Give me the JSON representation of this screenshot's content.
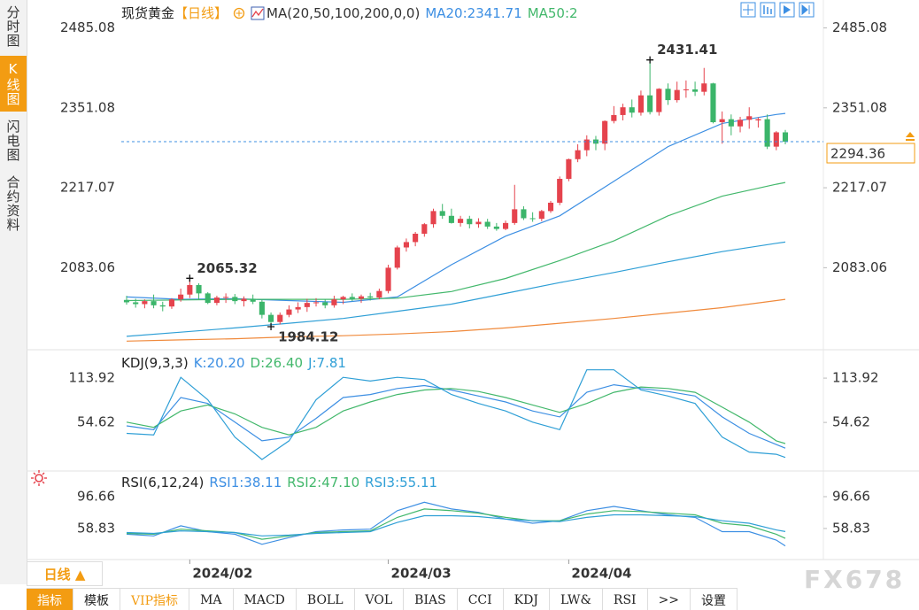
{
  "sidebar": {
    "tabs": [
      "分时图",
      "K线图",
      "闪电图",
      "合约资料"
    ],
    "active": 1
  },
  "period_button": "日线 ▲",
  "toolbar": {
    "tabs": [
      "指标",
      "模板",
      "VIP指标",
      "MA",
      "MACD",
      "BOLL",
      "VOL",
      "BIAS",
      "CCI",
      "KDJ",
      "LW&",
      "RSI",
      ">>",
      "设置"
    ],
    "active": 0,
    "highlight": 2
  },
  "watermark": "FX678",
  "chart_data": [
    {
      "type": "candlestick",
      "title": "现货黄金",
      "period": "【日线】",
      "indicator": "MA(20,50,100,200,0,0)",
      "categories": [
        null,
        null,
        null,
        null,
        null,
        null,
        null,
        "2024/02",
        null,
        null,
        null,
        null,
        null,
        null,
        null,
        null,
        null,
        null,
        null,
        null,
        null,
        null,
        null,
        null,
        null,
        null,
        null,
        null,
        null,
        "2024/03",
        null,
        null,
        null,
        null,
        null,
        null,
        null,
        null,
        null,
        null,
        null,
        null,
        null,
        null,
        null,
        null,
        null,
        null,
        null,
        "2024/04",
        null,
        null,
        null,
        null,
        null,
        null,
        null,
        null,
        null,
        null,
        null,
        null,
        null,
        null,
        null,
        null,
        null,
        null,
        null,
        null,
        null,
        null,
        null,
        null
      ],
      "open": [
        2029,
        2025,
        2022,
        2027,
        2020,
        2018,
        2030,
        2038,
        2054,
        2040,
        2024,
        2033,
        2034,
        2027,
        2031,
        2026,
        2004,
        1992,
        2004,
        2013,
        2017,
        2024,
        2025,
        2020,
        2030,
        2034,
        2031,
        2035,
        2033,
        2044,
        2083,
        2117,
        2126,
        2140,
        2156,
        2178,
        2170,
        2158,
        2165,
        2156,
        2160,
        2152,
        2148,
        2158,
        2181,
        2166,
        2165,
        2178,
        2192,
        2232,
        2265,
        2280,
        2298,
        2291,
        2329,
        2339,
        2352,
        2343,
        2372,
        2344,
        2383,
        2364,
        2381,
        2382,
        2378,
        2392,
        2327,
        2332,
        2320,
        2331,
        2330,
        2332,
        2286,
        2310
      ],
      "high": [
        2036,
        2031,
        2030,
        2038,
        2026,
        2032,
        2048,
        2065.32,
        2057,
        2042,
        2036,
        2040,
        2039,
        2035,
        2038,
        2030,
        2008,
        2008,
        2020,
        2025,
        2031,
        2032,
        2030,
        2036,
        2036,
        2040,
        2038,
        2041,
        2048,
        2088,
        2120,
        2132,
        2143,
        2158,
        2182,
        2190,
        2182,
        2170,
        2170,
        2166,
        2165,
        2158,
        2162,
        2222,
        2186,
        2176,
        2180,
        2195,
        2236,
        2266,
        2290,
        2305,
        2304,
        2330,
        2354,
        2358,
        2365,
        2380,
        2431.41,
        2384,
        2392,
        2395,
        2397,
        2395,
        2418,
        2393,
        2345,
        2340,
        2336,
        2352,
        2335,
        2340,
        2312,
        2314
      ],
      "low": [
        2021,
        2016,
        2015,
        2015,
        2010,
        2014,
        2026,
        2032,
        2030,
        2022,
        2020,
        2024,
        2022,
        2018,
        2022,
        1998,
        1984.12,
        1988,
        2000,
        2007,
        2009,
        2018,
        2015,
        2016,
        2022,
        2027,
        2024,
        2028,
        2030,
        2040,
        2080,
        2110,
        2119,
        2135,
        2150,
        2165,
        2157,
        2152,
        2149,
        2150,
        2148,
        2145,
        2146,
        2155,
        2163,
        2160,
        2161,
        2175,
        2188,
        2228,
        2260,
        2270,
        2280,
        2280,
        2325,
        2330,
        2335,
        2338,
        2340,
        2338,
        2356,
        2360,
        2368,
        2371,
        2372,
        2325,
        2291,
        2305,
        2310,
        2316,
        2318,
        2282,
        2280,
        2290
      ],
      "close": [
        2025,
        2022,
        2027,
        2020,
        2018,
        2030,
        2038,
        2054,
        2040,
        2024,
        2033,
        2034,
        2027,
        2031,
        2026,
        2004,
        1992,
        2004,
        2013,
        2017,
        2024,
        2025,
        2020,
        2030,
        2034,
        2031,
        2035,
        2033,
        2044,
        2083,
        2117,
        2126,
        2140,
        2156,
        2178,
        2170,
        2158,
        2165,
        2156,
        2160,
        2152,
        2148,
        2158,
        2181,
        2166,
        2165,
        2178,
        2192,
        2232,
        2265,
        2280,
        2298,
        2291,
        2329,
        2339,
        2352,
        2343,
        2372,
        2344,
        2383,
        2364,
        2381,
        2382,
        2378,
        2392,
        2327,
        2332,
        2320,
        2331,
        2337,
        2332,
        2286,
        2310,
        2294.36
      ],
      "up_color": "#e5434d",
      "down_color": "#3bb56a",
      "series": [
        {
          "name": "MA20:2341.71",
          "color": "#3d8fe3",
          "x": [
            0,
            6,
            12,
            18,
            24,
            30,
            36,
            42,
            48,
            54,
            60,
            66,
            72,
            73
          ],
          "values": [
            2034,
            2030,
            2031,
            2028,
            2025,
            2034,
            2088,
            2136,
            2170,
            2228,
            2286,
            2325,
            2340,
            2341.71
          ]
        },
        {
          "name": "MA50:2",
          "color": "#43b86c",
          "x": [
            0,
            6,
            12,
            18,
            24,
            30,
            36,
            42,
            48,
            54,
            60,
            66,
            72,
            73
          ],
          "values": [
            2028,
            2029,
            2030,
            2030,
            2030,
            2032,
            2043,
            2065,
            2095,
            2128,
            2170,
            2203,
            2223,
            2226
          ]
        },
        {
          "color": "#2f9fd6",
          "x": [
            0,
            6,
            12,
            18,
            24,
            30,
            36,
            42,
            48,
            54,
            60,
            66,
            72,
            73
          ],
          "values": [
            1968,
            1975,
            1982,
            1990,
            1998,
            2010,
            2022,
            2040,
            2058,
            2075,
            2093,
            2110,
            2124,
            2126
          ]
        },
        {
          "color": "#f08a3c",
          "x": [
            0,
            6,
            12,
            18,
            24,
            30,
            36,
            42,
            48,
            54,
            60,
            66,
            72,
            73
          ],
          "values": [
            1960,
            1962,
            1964,
            1967,
            1969,
            1972,
            1976,
            1982,
            1990,
            1998,
            2007,
            2016,
            2028,
            2030
          ]
        }
      ],
      "extreme_labels": [
        {
          "field": "high",
          "index": 58,
          "color": "#e5434d"
        },
        {
          "field": "high",
          "index": 7,
          "color": "#e5434d"
        },
        {
          "field": "low",
          "index": 16,
          "color": "#6bbf7a"
        }
      ],
      "price_line_color": "#3d8fe3",
      "price_box_color": "#f39c12",
      "ylim": [
        1950,
        2520
      ],
      "yticks": [
        2083.06,
        2217.07,
        2351.08,
        2485.08
      ]
    },
    {
      "type": "line",
      "title": "KDJ(9,3,3)",
      "x": [
        0,
        3,
        6,
        9,
        12,
        15,
        18,
        21,
        24,
        27,
        30,
        33,
        36,
        39,
        42,
        45,
        48,
        51,
        54,
        57,
        60,
        63,
        66,
        69,
        72,
        73
      ],
      "series": [
        {
          "name": "K:20.20",
          "color": "#3d8fe3",
          "values": [
            50,
            45,
            88,
            80,
            55,
            30,
            35,
            60,
            88,
            92,
            100,
            104,
            98,
            90,
            82,
            70,
            62,
            95,
            105,
            100,
            96,
            90,
            62,
            40,
            25,
            20.2
          ]
        },
        {
          "name": "D:26.40",
          "color": "#43b86c",
          "values": [
            55,
            48,
            70,
            78,
            66,
            48,
            38,
            48,
            70,
            82,
            92,
            98,
            100,
            96,
            88,
            78,
            68,
            80,
            95,
            102,
            100,
            95,
            75,
            55,
            30,
            26.4
          ]
        },
        {
          "name": "J:7.81",
          "color": "#2f9fd6",
          "values": [
            40,
            38,
            115,
            85,
            35,
            5,
            30,
            85,
            115,
            110,
            115,
            112,
            92,
            80,
            70,
            55,
            45,
            125,
            125,
            98,
            90,
            80,
            35,
            15,
            12,
            7.81
          ]
        }
      ],
      "ylim": [
        -8,
        146
      ],
      "yticks": [
        54.62,
        113.92
      ]
    },
    {
      "type": "line",
      "title": "RSI(6,12,24)",
      "x": [
        0,
        3,
        6,
        9,
        12,
        15,
        18,
        21,
        24,
        27,
        30,
        33,
        36,
        39,
        42,
        45,
        48,
        51,
        54,
        57,
        60,
        63,
        66,
        69,
        72,
        73
      ],
      "series": [
        {
          "name": "RSI1:38.11",
          "color": "#3d8fe3",
          "values": [
            52,
            50,
            62,
            55,
            52,
            40,
            48,
            55,
            57,
            58,
            80,
            90,
            82,
            78,
            70,
            65,
            68,
            80,
            85,
            80,
            75,
            72,
            55,
            55,
            45,
            38.11
          ]
        },
        {
          "name": "RSI2:47.10",
          "color": "#43b86c",
          "values": [
            53,
            52,
            58,
            56,
            54,
            46,
            50,
            54,
            55,
            56,
            72,
            82,
            80,
            77,
            72,
            68,
            68,
            76,
            80,
            79,
            77,
            75,
            65,
            62,
            52,
            47.1
          ]
        },
        {
          "name": "RSI3:55.11",
          "color": "#2f9fd6",
          "values": [
            54,
            53,
            56,
            55,
            54,
            50,
            51,
            53,
            54,
            55,
            66,
            74,
            74,
            73,
            70,
            68,
            67,
            72,
            75,
            75,
            74,
            73,
            68,
            65,
            57,
            55.11
          ]
        }
      ],
      "ylim": [
        24,
        124
      ],
      "yticks": [
        58.83,
        96.66
      ]
    }
  ]
}
